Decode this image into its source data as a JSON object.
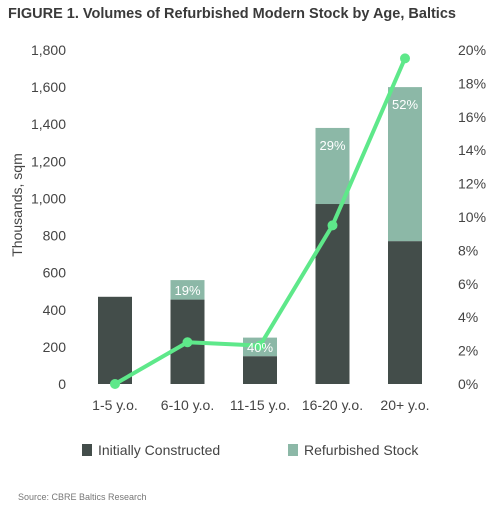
{
  "title": "FIGURE 1. Volumes of Refurbished Modern Stock by Age, Baltics",
  "source": "Source: CBRE Baltics Research",
  "colors": {
    "initial": "#434d4a",
    "refurb": "#8cb8a7",
    "line": "#5ee88a"
  },
  "chart_data": {
    "type": "bar",
    "stacked": true,
    "categories": [
      "1-5 y.o.",
      "6-10 y.o.",
      "11-15 y.o.",
      "16-20 y.o.",
      "20+ y.o."
    ],
    "ylabel": "Thousands, sqm",
    "ylim": [
      0,
      1800
    ],
    "yticks": [
      "0",
      "200",
      "400",
      "600",
      "800",
      "1,000",
      "1,200",
      "1,400",
      "1,600",
      "1,800"
    ],
    "y2lim": [
      0,
      20
    ],
    "y2ticks": [
      "0%",
      "2%",
      "4%",
      "6%",
      "8%",
      "10%",
      "12%",
      "14%",
      "16%",
      "18%",
      "20%"
    ],
    "series": [
      {
        "name": "Initially Constructed",
        "values": [
          470,
          455,
          150,
          970,
          770
        ]
      },
      {
        "name": "Refurbished Stock",
        "values": [
          0,
          105,
          100,
          410,
          830
        ]
      }
    ],
    "data_labels": [
      "",
      "19%",
      "40%",
      "29%",
      "52%"
    ],
    "line": {
      "axis": "secondary",
      "values": [
        0.0,
        2.5,
        2.3,
        9.5,
        19.5
      ]
    }
  }
}
